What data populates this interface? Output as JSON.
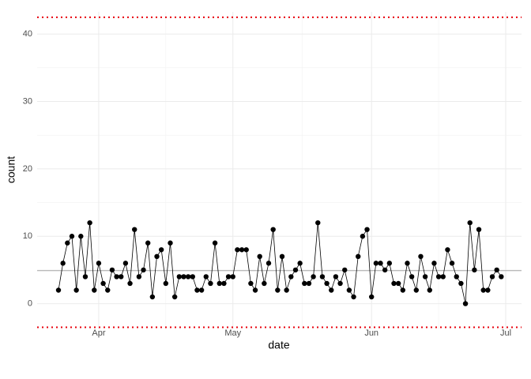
{
  "chart_data": {
    "type": "line",
    "x_label": "date",
    "y_label": "count",
    "categories": [
      null,
      null,
      null,
      null,
      null,
      null,
      null,
      null,
      null,
      "Apr",
      null,
      null,
      null,
      null,
      null,
      null,
      null,
      null,
      null,
      null,
      null,
      null,
      null,
      null,
      null,
      null,
      null,
      null,
      null,
      null,
      null,
      null,
      null,
      null,
      null,
      null,
      null,
      null,
      null,
      "May",
      null,
      null,
      null,
      null,
      null,
      null,
      null,
      null,
      null,
      null,
      null,
      null,
      null,
      null,
      null,
      null,
      null,
      null,
      null,
      null,
      null,
      null,
      null,
      null,
      null,
      null,
      null,
      null,
      null,
      null,
      "Jun",
      null,
      null,
      null,
      null,
      null,
      null,
      null,
      null,
      null,
      null,
      null,
      null,
      null,
      null,
      null,
      null,
      null,
      null,
      null,
      null,
      null,
      null,
      null,
      null,
      null,
      null,
      null,
      null,
      null,
      "Jul"
    ],
    "values": [
      2,
      6,
      9,
      10,
      2,
      10,
      4,
      12,
      2,
      6,
      3,
      2,
      5,
      4,
      4,
      6,
      3,
      11,
      4,
      5,
      9,
      1,
      7,
      8,
      3,
      9,
      1,
      4,
      4,
      4,
      4,
      2,
      2,
      4,
      3,
      9,
      3,
      3,
      4,
      4,
      8,
      8,
      8,
      3,
      2,
      7,
      3,
      6,
      11,
      2,
      7,
      2,
      4,
      5,
      6,
      3,
      3,
      4,
      12,
      4,
      3,
      2,
      4,
      3,
      5,
      2,
      1,
      7,
      10,
      11,
      1,
      6,
      6,
      5,
      6,
      3,
      3,
      2,
      6,
      4,
      2,
      7,
      4,
      2,
      6,
      4,
      4,
      8,
      6,
      4,
      3,
      0,
      12,
      5,
      11,
      2,
      2,
      4,
      5,
      4,
      null
    ],
    "color": "#000000",
    "ylim": [
      -3.8,
      43.3
    ],
    "yticks": [
      0,
      10,
      20,
      30,
      40
    ],
    "grid": true,
    "reference_lines": [
      {
        "value": 4.9,
        "color": "#a6a6a6",
        "style": "solid"
      },
      {
        "value": 42.5,
        "color": "#e8000b",
        "style": "dotted"
      },
      {
        "value": -3.5,
        "color": "#e8000b",
        "style": "dotted"
      }
    ]
  }
}
